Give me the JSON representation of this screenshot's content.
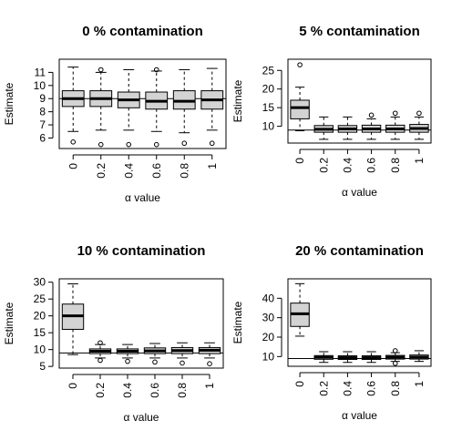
{
  "chart_data": [
    {
      "type": "boxplot",
      "title": "0 % contamination",
      "xlabel": "α value",
      "ylabel": "Estimate",
      "categories": [
        "0",
        "0.2",
        "0.4",
        "0.6",
        "0.8",
        "1"
      ],
      "ylim": [
        5.2,
        12.0
      ],
      "yticks": [
        6,
        7,
        8,
        9,
        10,
        11
      ],
      "reference_line": 9,
      "boxes": [
        {
          "whisker_low": 6.5,
          "q1": 8.4,
          "median": 9.0,
          "q3": 9.6,
          "whisker_high": 11.4,
          "outliers": [
            5.7
          ]
        },
        {
          "whisker_low": 6.6,
          "q1": 8.4,
          "median": 9.0,
          "q3": 9.6,
          "whisker_high": 11.0,
          "outliers": [
            5.5,
            11.2
          ]
        },
        {
          "whisker_low": 6.6,
          "q1": 8.3,
          "median": 8.9,
          "q3": 9.5,
          "whisker_high": 11.2,
          "outliers": [
            5.5
          ]
        },
        {
          "whisker_low": 6.5,
          "q1": 8.2,
          "median": 8.8,
          "q3": 9.5,
          "whisker_high": 11.1,
          "outliers": [
            5.5,
            11.2
          ]
        },
        {
          "whisker_low": 6.4,
          "q1": 8.2,
          "median": 8.8,
          "q3": 9.6,
          "whisker_high": 11.2,
          "outliers": [
            5.6
          ]
        },
        {
          "whisker_low": 6.6,
          "q1": 8.2,
          "median": 8.9,
          "q3": 9.6,
          "whisker_high": 11.3,
          "outliers": [
            5.6
          ]
        }
      ]
    },
    {
      "type": "boxplot",
      "title": "5 % contamination",
      "xlabel": "α value",
      "ylabel": "Estimate",
      "categories": [
        "0",
        "0.2",
        "0.4",
        "0.6",
        "0.8",
        "1"
      ],
      "ylim": [
        5.5,
        28.0
      ],
      "yticks": [
        10,
        15,
        20,
        25
      ],
      "reference_line": 9,
      "boxes": [
        {
          "whisker_low": 8.8,
          "q1": 12.0,
          "median": 15.0,
          "q3": 17.0,
          "whisker_high": 20.5,
          "outliers": [
            26.5
          ]
        },
        {
          "whisker_low": 6.5,
          "q1": 8.4,
          "median": 9.2,
          "q3": 10.2,
          "whisker_high": 12.5,
          "outliers": []
        },
        {
          "whisker_low": 6.5,
          "q1": 8.4,
          "median": 9.3,
          "q3": 10.2,
          "whisker_high": 12.5,
          "outliers": []
        },
        {
          "whisker_low": 6.5,
          "q1": 8.4,
          "median": 9.3,
          "q3": 10.3,
          "whisker_high": 12.0,
          "outliers": [
            13.0
          ]
        },
        {
          "whisker_low": 6.5,
          "q1": 8.4,
          "median": 9.3,
          "q3": 10.3,
          "whisker_high": 12.5,
          "outliers": [
            13.5
          ]
        },
        {
          "whisker_low": 6.5,
          "q1": 8.4,
          "median": 9.4,
          "q3": 10.5,
          "whisker_high": 12.5,
          "outliers": [
            13.5
          ]
        }
      ]
    },
    {
      "type": "boxplot",
      "title": "10 % contamination",
      "xlabel": "α value",
      "ylabel": "Estimate",
      "categories": [
        "0",
        "0.2",
        "0.4",
        "0.6",
        "0.8",
        "1"
      ],
      "ylim": [
        4.5,
        31.0
      ],
      "yticks": [
        5,
        10,
        15,
        20,
        25,
        30
      ],
      "reference_line": 9,
      "boxes": [
        {
          "whisker_low": 8.5,
          "q1": 16.0,
          "median": 20.0,
          "q3": 23.5,
          "whisker_high": 29.5,
          "outliers": []
        },
        {
          "whisker_low": 7.5,
          "q1": 8.8,
          "median": 9.5,
          "q3": 10.2,
          "whisker_high": 11.5,
          "outliers": [
            6.8,
            12.0
          ]
        },
        {
          "whisker_low": 7.5,
          "q1": 8.8,
          "median": 9.5,
          "q3": 10.2,
          "whisker_high": 11.5,
          "outliers": [
            6.5
          ]
        },
        {
          "whisker_low": 7.5,
          "q1": 8.8,
          "median": 9.6,
          "q3": 10.5,
          "whisker_high": 11.8,
          "outliers": [
            6.3
          ]
        },
        {
          "whisker_low": 7.5,
          "q1": 8.8,
          "median": 9.7,
          "q3": 10.6,
          "whisker_high": 12.0,
          "outliers": [
            6.0
          ]
        },
        {
          "whisker_low": 7.5,
          "q1": 8.8,
          "median": 9.8,
          "q3": 10.6,
          "whisker_high": 12.0,
          "outliers": [
            5.8
          ]
        }
      ]
    },
    {
      "type": "boxplot",
      "title": "20 % contamination",
      "xlabel": "α value",
      "ylabel": "Estimate",
      "categories": [
        "0",
        "0.2",
        "0.4",
        "0.6",
        "0.8",
        "1"
      ],
      "ylim": [
        5.0,
        50.0
      ],
      "yticks": [
        10,
        20,
        30,
        40
      ],
      "reference_line": 9,
      "boxes": [
        {
          "whisker_low": 20.5,
          "q1": 25.5,
          "median": 32.0,
          "q3": 37.5,
          "whisker_high": 47.5,
          "outliers": []
        },
        {
          "whisker_low": 7.0,
          "q1": 8.6,
          "median": 9.6,
          "q3": 10.5,
          "whisker_high": 12.5,
          "outliers": []
        },
        {
          "whisker_low": 7.0,
          "q1": 8.5,
          "median": 9.4,
          "q3": 10.4,
          "whisker_high": 12.5,
          "outliers": []
        },
        {
          "whisker_low": 7.0,
          "q1": 8.5,
          "median": 9.4,
          "q3": 10.4,
          "whisker_high": 12.5,
          "outliers": []
        },
        {
          "whisker_low": 7.5,
          "q1": 8.7,
          "median": 9.6,
          "q3": 10.6,
          "whisker_high": 12.0,
          "outliers": [
            6.5,
            13.0
          ]
        },
        {
          "whisker_low": 7.5,
          "q1": 8.7,
          "median": 9.7,
          "q3": 10.8,
          "whisker_high": 13.0,
          "outliers": []
        }
      ]
    }
  ],
  "style": {
    "box_fill": "#d3d3d3",
    "stroke": "#000000",
    "background": "#ffffff"
  }
}
